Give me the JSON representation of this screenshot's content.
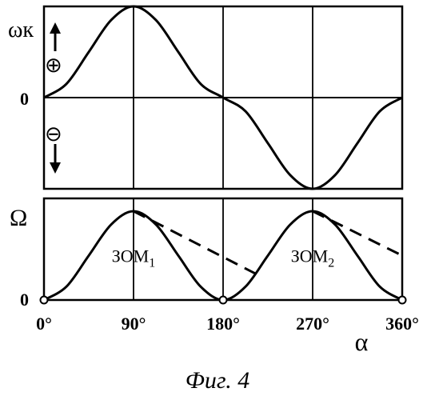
{
  "figure": {
    "caption": "Фиг. 4"
  },
  "chart_data": [
    {
      "type": "line",
      "ylabel": "ωк",
      "y_zero_label": "0",
      "positive_sign": "⊕",
      "negative_sign": "⊖",
      "xlim": [
        0,
        360
      ],
      "ylim": [
        -1,
        1
      ],
      "grid": "vertical lines at 90, 180, 270",
      "series": [
        {
          "x": [
            0,
            22.5,
            45,
            67.5,
            90,
            112.5,
            135,
            157.5,
            180,
            202.5,
            225,
            247.5,
            270,
            292.5,
            315,
            337.5,
            360
          ],
          "y": [
            0,
            0.15,
            0.5,
            0.85,
            1,
            0.85,
            0.5,
            0.15,
            0,
            -0.15,
            -0.5,
            -0.85,
            -1,
            -0.85,
            -0.5,
            -0.15,
            0
          ]
        }
      ],
      "colors": {
        "line": "#000000",
        "grid": "#000000"
      }
    },
    {
      "type": "line",
      "ylabel": "Ω",
      "y_zero_label": "0",
      "xlabel": "α",
      "xticks": [
        "0°",
        "90°",
        "180°",
        "270°",
        "360°"
      ],
      "xlim": [
        0,
        360
      ],
      "ylim": [
        0,
        1
      ],
      "grid": "vertical lines at 90, 180, 270",
      "annotations": [
        {
          "base": "ЗОМ",
          "sub": "1",
          "x": 90,
          "y": 0.5
        },
        {
          "base": "ЗОМ",
          "sub": "2",
          "x": 270,
          "y": 0.5
        }
      ],
      "series": [
        {
          "style": "solid",
          "x": [
            0,
            22.5,
            45,
            67.5,
            90,
            112.5,
            135,
            157.5,
            180,
            202.5,
            225,
            247.5,
            270,
            292.5,
            315,
            337.5,
            360
          ],
          "y": [
            0,
            0.15,
            0.5,
            0.85,
            1,
            0.85,
            0.5,
            0.15,
            0,
            0.15,
            0.5,
            0.85,
            1,
            0.85,
            0.5,
            0.15,
            0
          ]
        },
        {
          "style": "dashed",
          "x": [
            90,
            212
          ],
          "y": [
            1,
            0.3
          ]
        },
        {
          "style": "dashed",
          "x": [
            270,
            360
          ],
          "y": [
            1,
            0.5
          ]
        }
      ],
      "markers": {
        "style": "open-circle",
        "x": [
          0,
          180,
          360
        ],
        "y": [
          0,
          0,
          0
        ]
      },
      "colors": {
        "line": "#000000",
        "grid": "#000000"
      }
    }
  ]
}
